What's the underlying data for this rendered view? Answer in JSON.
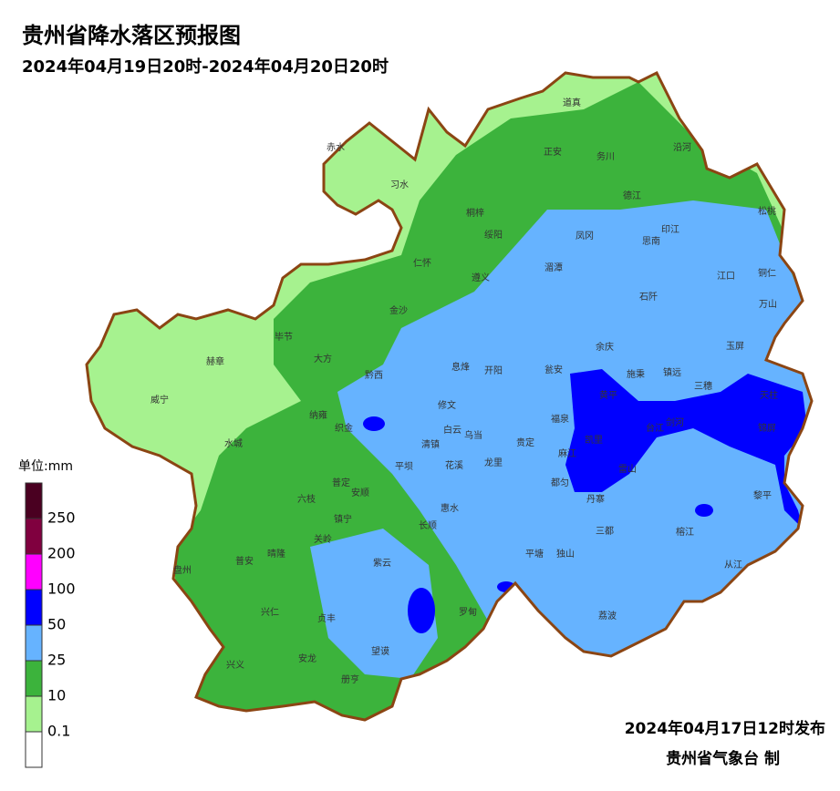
{
  "header": {
    "title": "贵州省降水落区预报图",
    "subtitle": "2024年04月19日20时-2024年04月20日20时"
  },
  "legend": {
    "unit": "单位:mm",
    "labels": [
      "250",
      "200",
      "100",
      "50",
      "25",
      "10",
      "0.1"
    ],
    "colors": [
      "#4a0021",
      "#80003f",
      "#ff00ff",
      "#0000ff",
      "#66b3ff",
      "#3cb33c",
      "#a6f28f",
      "#ffffff"
    ]
  },
  "counties": [
    "赤水",
    "习水",
    "道真",
    "正安",
    "务川",
    "沿河",
    "桐梓",
    "德江",
    "松桃",
    "绥阳",
    "凤冈",
    "印江",
    "思南",
    "仁怀",
    "湄潭",
    "江口",
    "铜仁",
    "遵义",
    "石阡",
    "万山",
    "金沙",
    "毕节",
    "余庆",
    "玉屏",
    "赫章",
    "大方",
    "息烽",
    "开阳",
    "瓮安",
    "施秉",
    "镇远",
    "黔西",
    "三穗",
    "天柱",
    "威宁",
    "黄平",
    "修文",
    "纳雍",
    "福泉",
    "台江",
    "剑河",
    "锦屏",
    "织金",
    "白云",
    "乌当",
    "清镇",
    "贵定",
    "凯里",
    "麻江",
    "雷山",
    "水城",
    "平坝",
    "花溪",
    "龙里",
    "都匀",
    "丹寨",
    "黎平",
    "普定",
    "安顺",
    "六枝",
    "惠水",
    "长顺",
    "镇宁",
    "三都",
    "榕江",
    "关岭",
    "晴隆",
    "平塘",
    "独山",
    "从江",
    "盘州",
    "普安",
    "紫云",
    "兴仁",
    "贞丰",
    "罗甸",
    "荔波",
    "望谟",
    "兴义",
    "安龙",
    "册亨"
  ],
  "footer": {
    "issued": "2024年04月17日12时发布",
    "agency": "贵州省气象台 制"
  }
}
